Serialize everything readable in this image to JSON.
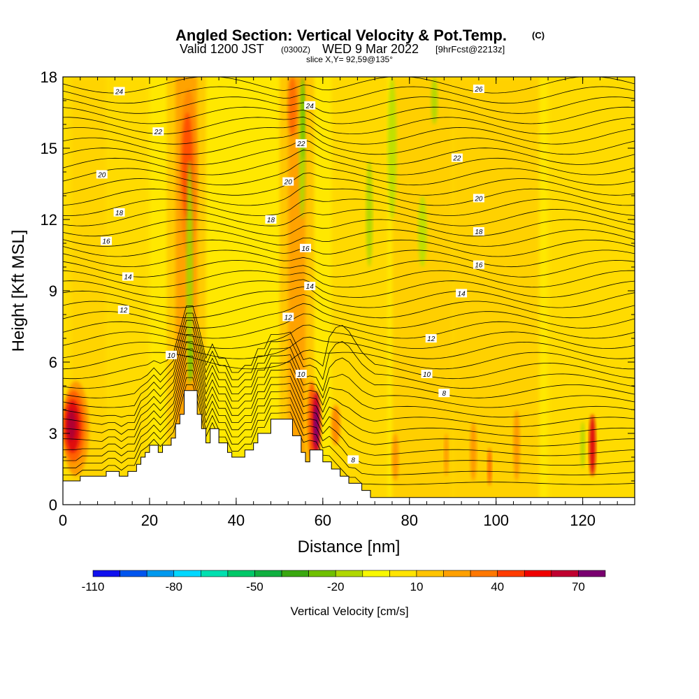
{
  "chart_data": {
    "type": "heatmap",
    "title": "Angled Section: Vertical Velocity & Pot.Temp.",
    "title_unit": "(C)",
    "subtitle_prefix": "Valid 1200 JST",
    "subtitle_utc": "(0300Z)",
    "subtitle_date": "WED 9 Mar 2022",
    "subtitle_fcst": "[9hrFcst@2213z]",
    "slice_label": "slice X,Y= 92,59@135°",
    "xlabel": "Distance [nm]",
    "ylabel": "Height [Kft MSL]",
    "xlim": [
      0,
      132
    ],
    "ylim": [
      0,
      18
    ],
    "x_ticks": [
      "0",
      "20",
      "40",
      "60",
      "80",
      "100",
      "120"
    ],
    "y_ticks": [
      "0",
      "3",
      "6",
      "9",
      "12",
      "15",
      "18"
    ],
    "colorbar": {
      "label": "Vertical Velocity [cm/s]",
      "tick_labels": [
        "-110",
        "-80",
        "-50",
        "-20",
        "10",
        "40",
        "70"
      ],
      "colors": [
        "#0000ee",
        "#0044ee",
        "#0088ee",
        "#00c8ee",
        "#00e8ff",
        "#00d8a0",
        "#00c060",
        "#10a030",
        "#40b010",
        "#80c800",
        "#c0e000",
        "#f0f000",
        "#ffe800",
        "#ffd000",
        "#ffb400",
        "#ff9400",
        "#ff7000",
        "#ff4a00",
        "#ff1000",
        "#d80020",
        "#b00040",
        "#8a0060",
        "#600080"
      ]
    },
    "terrain": [
      [
        0,
        1.0
      ],
      [
        4,
        1.0
      ],
      [
        4,
        1.2
      ],
      [
        10,
        1.2
      ],
      [
        10,
        1.4
      ],
      [
        13,
        1.4
      ],
      [
        13,
        1.2
      ],
      [
        15,
        1.2
      ],
      [
        15,
        1.4
      ],
      [
        17,
        1.4
      ],
      [
        17,
        1.7
      ],
      [
        18,
        1.7
      ],
      [
        18,
        2.0
      ],
      [
        19,
        2.0
      ],
      [
        19,
        2.2
      ],
      [
        20,
        2.2
      ],
      [
        20,
        2.5
      ],
      [
        22,
        2.5
      ],
      [
        22,
        2.2
      ],
      [
        23,
        2.2
      ],
      [
        23,
        2.5
      ],
      [
        25,
        2.5
      ],
      [
        25,
        2.8
      ],
      [
        26,
        2.8
      ],
      [
        26,
        3.4
      ],
      [
        27,
        3.4
      ],
      [
        27,
        3.8
      ],
      [
        28,
        3.8
      ],
      [
        28,
        4.8
      ],
      [
        31,
        4.8
      ],
      [
        31,
        3.8
      ],
      [
        32,
        3.8
      ],
      [
        32,
        3.2
      ],
      [
        33,
        3.2
      ],
      [
        33,
        2.6
      ],
      [
        34,
        2.6
      ],
      [
        34,
        3.2
      ],
      [
        36,
        3.2
      ],
      [
        36,
        2.6
      ],
      [
        38,
        2.6
      ],
      [
        38,
        2.2
      ],
      [
        39,
        2.2
      ],
      [
        39,
        2.0
      ],
      [
        42,
        2.0
      ],
      [
        42,
        2.3
      ],
      [
        44,
        2.3
      ],
      [
        44,
        2.6
      ],
      [
        45,
        2.6
      ],
      [
        45,
        3.0
      ],
      [
        48,
        3.0
      ],
      [
        48,
        3.6
      ],
      [
        53,
        3.6
      ],
      [
        53,
        2.9
      ],
      [
        55,
        2.9
      ],
      [
        55,
        2.2
      ],
      [
        56,
        2.2
      ],
      [
        56,
        1.8
      ],
      [
        57,
        1.8
      ],
      [
        57,
        2.3
      ],
      [
        60,
        2.3
      ],
      [
        60,
        1.8
      ],
      [
        62,
        1.8
      ],
      [
        62,
        1.5
      ],
      [
        64,
        1.5
      ],
      [
        64,
        1.2
      ],
      [
        66,
        1.2
      ],
      [
        66,
        0.9
      ],
      [
        69,
        0.9
      ],
      [
        69,
        0.6
      ],
      [
        71,
        0.6
      ],
      [
        71,
        0.3
      ],
      [
        132,
        0.3
      ]
    ],
    "theta_label_values": [
      "24",
      "22",
      "20",
      "18",
      "16",
      "14",
      "12",
      "10",
      "8",
      "26"
    ]
  }
}
